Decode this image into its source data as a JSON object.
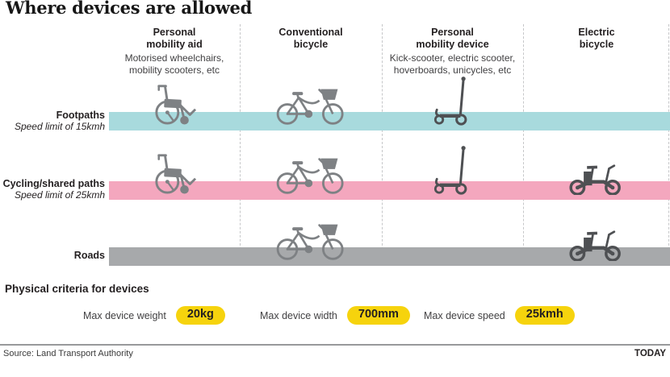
{
  "title": "Where devices are allowed",
  "columns": [
    {
      "name_line1": "Personal",
      "name_line2": "mobility aid",
      "desc": "Motorised wheelchairs,\nmobility scooters, etc"
    },
    {
      "name_line1": "Conventional",
      "name_line2": "bicycle",
      "desc": ""
    },
    {
      "name_line1": "Personal",
      "name_line2": "mobility device",
      "desc": "Kick-scooter, electric scooter,\nhoverboards, unicycles, etc"
    },
    {
      "name_line1": "Electric",
      "name_line2": "bicycle",
      "desc": ""
    }
  ],
  "rows": [
    {
      "label": "Footpaths",
      "sublabel": "Speed limit of 15kmh",
      "band_color": "#a8dadd",
      "devices": [
        "wheelchair",
        "bicycle",
        "scooter",
        null
      ]
    },
    {
      "label": "Cycling/shared paths",
      "sublabel": "Speed limit of 25kmh",
      "band_color": "#f4a7be",
      "devices": [
        "wheelchair",
        "bicycle",
        "scooter",
        "ebike"
      ]
    },
    {
      "label": "Roads",
      "sublabel": "",
      "band_color": "#a7a9ab",
      "devices": [
        null,
        "bicycle",
        null,
        "ebike"
      ]
    }
  ],
  "criteria": {
    "heading": "Physical criteria for devices",
    "items": [
      {
        "label": "Max device weight",
        "value": "20kg"
      },
      {
        "label": "Max device width",
        "value": "700mm"
      },
      {
        "label": "Max device speed",
        "value": "25kmh"
      }
    ],
    "badge_color": "#f6d30d"
  },
  "icon_colors": {
    "light": "#7e8184",
    "dark": "#4e5053"
  },
  "footer": {
    "source": "Source: Land Transport Authority",
    "brand": "TODAY"
  }
}
